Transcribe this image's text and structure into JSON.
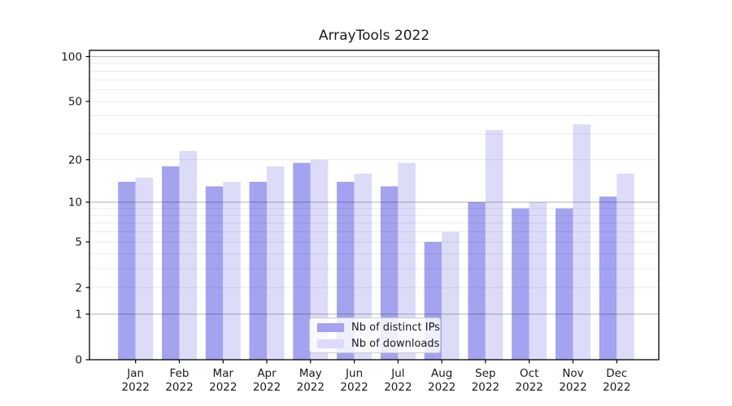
{
  "chart_data": {
    "type": "bar",
    "title": "ArrayTools 2022",
    "categories": [
      "Jan 2022",
      "Feb 2022",
      "Mar 2022",
      "Apr 2022",
      "May 2022",
      "Jun 2022",
      "Jul 2022",
      "Aug 2022",
      "Sep 2022",
      "Oct 2022",
      "Nov 2022",
      "Dec 2022"
    ],
    "series": [
      {
        "name": "Nb of distinct IPs",
        "color": "#a3a3f0",
        "values": [
          14,
          18,
          13,
          14,
          19,
          14,
          13,
          5,
          10,
          9,
          9,
          11
        ]
      },
      {
        "name": "Nb of downloads",
        "color": "#dcdcf9",
        "values": [
          15,
          23,
          14,
          18,
          20,
          16,
          19,
          6,
          32,
          10,
          35,
          16
        ]
      }
    ],
    "yscale": "log1p",
    "yticks": [
      0,
      1,
      2,
      5,
      10,
      20,
      50,
      100
    ],
    "major_gridlines": [
      1,
      10,
      100
    ],
    "minor_gridlines": [
      2,
      3,
      4,
      5,
      6,
      7,
      8,
      9,
      20,
      30,
      40,
      50,
      60,
      70,
      80,
      90
    ],
    "ylim": [
      0,
      110
    ],
    "xlabel": "",
    "ylabel": "",
    "grid": true,
    "legend_position": "lower center"
  }
}
